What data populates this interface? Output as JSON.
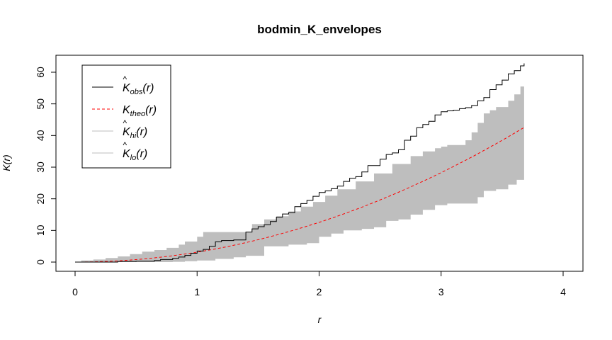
{
  "chart_data": {
    "type": "line",
    "title": "bodmin_K_envelopes",
    "xlabel": "r",
    "ylabel": "K(r)",
    "xlim": [
      0,
      4
    ],
    "ylim": [
      0,
      60
    ],
    "x_ticks": [
      0,
      1,
      2,
      3,
      4
    ],
    "y_ticks": [
      0,
      10,
      20,
      30,
      40,
      50,
      60
    ],
    "legend_position": "top-left",
    "grid": false,
    "series": [
      {
        "name": "K_obs(r)",
        "legend_base": "K",
        "legend_sub": "obs",
        "hat": true,
        "color": "#000000",
        "style": "solid",
        "step": true,
        "x": [
          0,
          0.35,
          0.5,
          0.65,
          0.7,
          0.8,
          0.85,
          0.9,
          0.95,
          1.0,
          1.05,
          1.1,
          1.15,
          1.2,
          1.3,
          1.4,
          1.45,
          1.5,
          1.55,
          1.6,
          1.65,
          1.7,
          1.75,
          1.8,
          1.85,
          1.9,
          1.95,
          2.0,
          2.05,
          2.1,
          2.15,
          2.2,
          2.25,
          2.3,
          2.35,
          2.4,
          2.5,
          2.55,
          2.6,
          2.65,
          2.7,
          2.75,
          2.8,
          2.85,
          2.9,
          2.95,
          3.0,
          3.05,
          3.1,
          3.15,
          3.2,
          3.25,
          3.3,
          3.35,
          3.4,
          3.45,
          3.5,
          3.55,
          3.6,
          3.65,
          3.68
        ],
        "y": [
          0,
          0.2,
          0.3,
          0.5,
          0.8,
          1.2,
          1.6,
          2.1,
          2.8,
          3.5,
          4.0,
          5.0,
          6.4,
          6.8,
          7.0,
          9.5,
          10.5,
          11.2,
          11.8,
          12.8,
          14.2,
          15.2,
          15.6,
          17.5,
          18.5,
          19.5,
          20.8,
          22.0,
          22.5,
          23.2,
          24.0,
          25.5,
          26.5,
          27.0,
          28.5,
          30.5,
          32.5,
          34.0,
          34.5,
          35.5,
          38.5,
          39.8,
          42.5,
          43.5,
          44.5,
          46.5,
          47.5,
          47.8,
          48.0,
          48.5,
          48.8,
          49.5,
          51.0,
          52.0,
          54.5,
          56.0,
          57.5,
          59.5,
          60.5,
          62.0,
          62.8
        ]
      },
      {
        "name": "K_theo(r)",
        "legend_base": "K",
        "legend_sub": "theo",
        "hat": false,
        "color": "#ff0000",
        "style": "dashed",
        "formula": "pi*r^2",
        "x_range": [
          0,
          3.68
        ]
      },
      {
        "name": "K_hi(r)",
        "legend_base": "K",
        "legend_sub": "hi",
        "hat": true,
        "color": "#bebebe",
        "style": "band-upper",
        "x": [
          0,
          0.05,
          0.15,
          0.25,
          0.35,
          0.45,
          0.55,
          0.65,
          0.75,
          0.85,
          0.9,
          1.0,
          1.05,
          1.1,
          1.3,
          1.45,
          1.55,
          1.65,
          1.75,
          1.85,
          1.95,
          2.05,
          2.15,
          2.3,
          2.45,
          2.6,
          2.75,
          2.85,
          2.95,
          3.0,
          3.05,
          3.1,
          3.2,
          3.25,
          3.3,
          3.35,
          3.4,
          3.45,
          3.55,
          3.6,
          3.65,
          3.68
        ],
        "y": [
          0,
          0.5,
          0.8,
          1.3,
          1.8,
          2.5,
          3.3,
          3.8,
          4.5,
          5.5,
          6.5,
          8.0,
          9.5,
          9.5,
          9.5,
          12.0,
          13.5,
          14.5,
          16.0,
          17.5,
          19.0,
          21.0,
          23.0,
          25.5,
          28.0,
          31.0,
          33.5,
          35.0,
          36.0,
          36.5,
          37.0,
          37.0,
          38.5,
          41.0,
          44.0,
          47.0,
          48.0,
          49.0,
          51.0,
          53.0,
          55.5,
          56.0
        ]
      },
      {
        "name": "K_lo(r)",
        "legend_base": "K",
        "legend_sub": "lo",
        "hat": true,
        "color": "#bebebe",
        "style": "band-lower",
        "x": [
          0,
          0.6,
          0.8,
          0.9,
          1.0,
          1.15,
          1.3,
          1.4,
          1.55,
          1.75,
          1.9,
          2.0,
          2.1,
          2.2,
          2.35,
          2.45,
          2.55,
          2.65,
          2.75,
          2.85,
          2.95,
          3.05,
          3.15,
          3.2,
          3.3,
          3.35,
          3.45,
          3.55,
          3.62,
          3.68
        ],
        "y": [
          0,
          0,
          0.1,
          0.3,
          0.5,
          1.0,
          1.5,
          2.0,
          5.0,
          5.5,
          6.0,
          8.0,
          9.0,
          10.0,
          10.5,
          11.0,
          13.0,
          13.5,
          15.0,
          16.5,
          18.0,
          18.5,
          18.5,
          18.5,
          20.5,
          22.5,
          23.0,
          24.5,
          26.0,
          28.0
        ]
      }
    ]
  }
}
